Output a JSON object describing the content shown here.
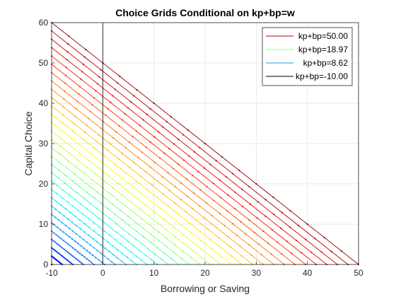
{
  "chart_data": {
    "type": "line",
    "title": "Choice Grids Conditional on kp+bp=w",
    "xlabel": "Borrowing or Saving",
    "ylabel": "Capital Choice",
    "xlim": [
      -10,
      50
    ],
    "ylim": [
      0,
      60
    ],
    "xticks": [
      -10,
      0,
      10,
      20,
      30,
      40,
      50
    ],
    "yticks": [
      0,
      10,
      20,
      30,
      40,
      50,
      60
    ],
    "grid": true,
    "legend_position": "top-right",
    "colormap": "jet",
    "w_min": -10,
    "w_max": 50,
    "w_count": 30,
    "series": [
      {
        "name": "kp+bp=50.00",
        "w": 50.0,
        "color": "#a80000"
      },
      {
        "name": "kp+bp=18.97",
        "w": 18.97,
        "color": "#7dffa0"
      },
      {
        "name": "kp+bp=8.62",
        "w": 8.62,
        "color": "#1b9ce0"
      },
      {
        "name": "kp+bp=-10.00",
        "w": -10.0,
        "color": "#000000"
      }
    ],
    "vertical_line": {
      "x": 0,
      "color": "#000000"
    }
  }
}
